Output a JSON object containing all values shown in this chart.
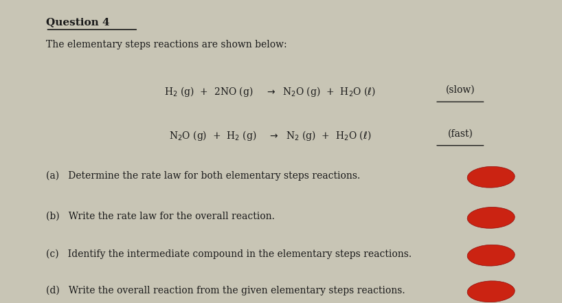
{
  "background_color": "#c8c5b5",
  "paper_color": "#d6d2c4",
  "title": "Question 4",
  "subtitle": "The elementary steps reactions are shown below:",
  "reaction1_label": "(slow)",
  "reaction2_label": "(fast)",
  "question_a": "(a)   Determine the rate law for both elementary steps reactions.",
  "question_b": "(b)   Write the rate law for the overall reaction.",
  "question_c": "(c)   Identify the intermediate compound in the elementary steps reactions.",
  "question_d": "(d)   Write the overall reaction from the given elementary steps reactions.",
  "text_color": "#1a1a1a",
  "red_blob_color": "#cc1100"
}
